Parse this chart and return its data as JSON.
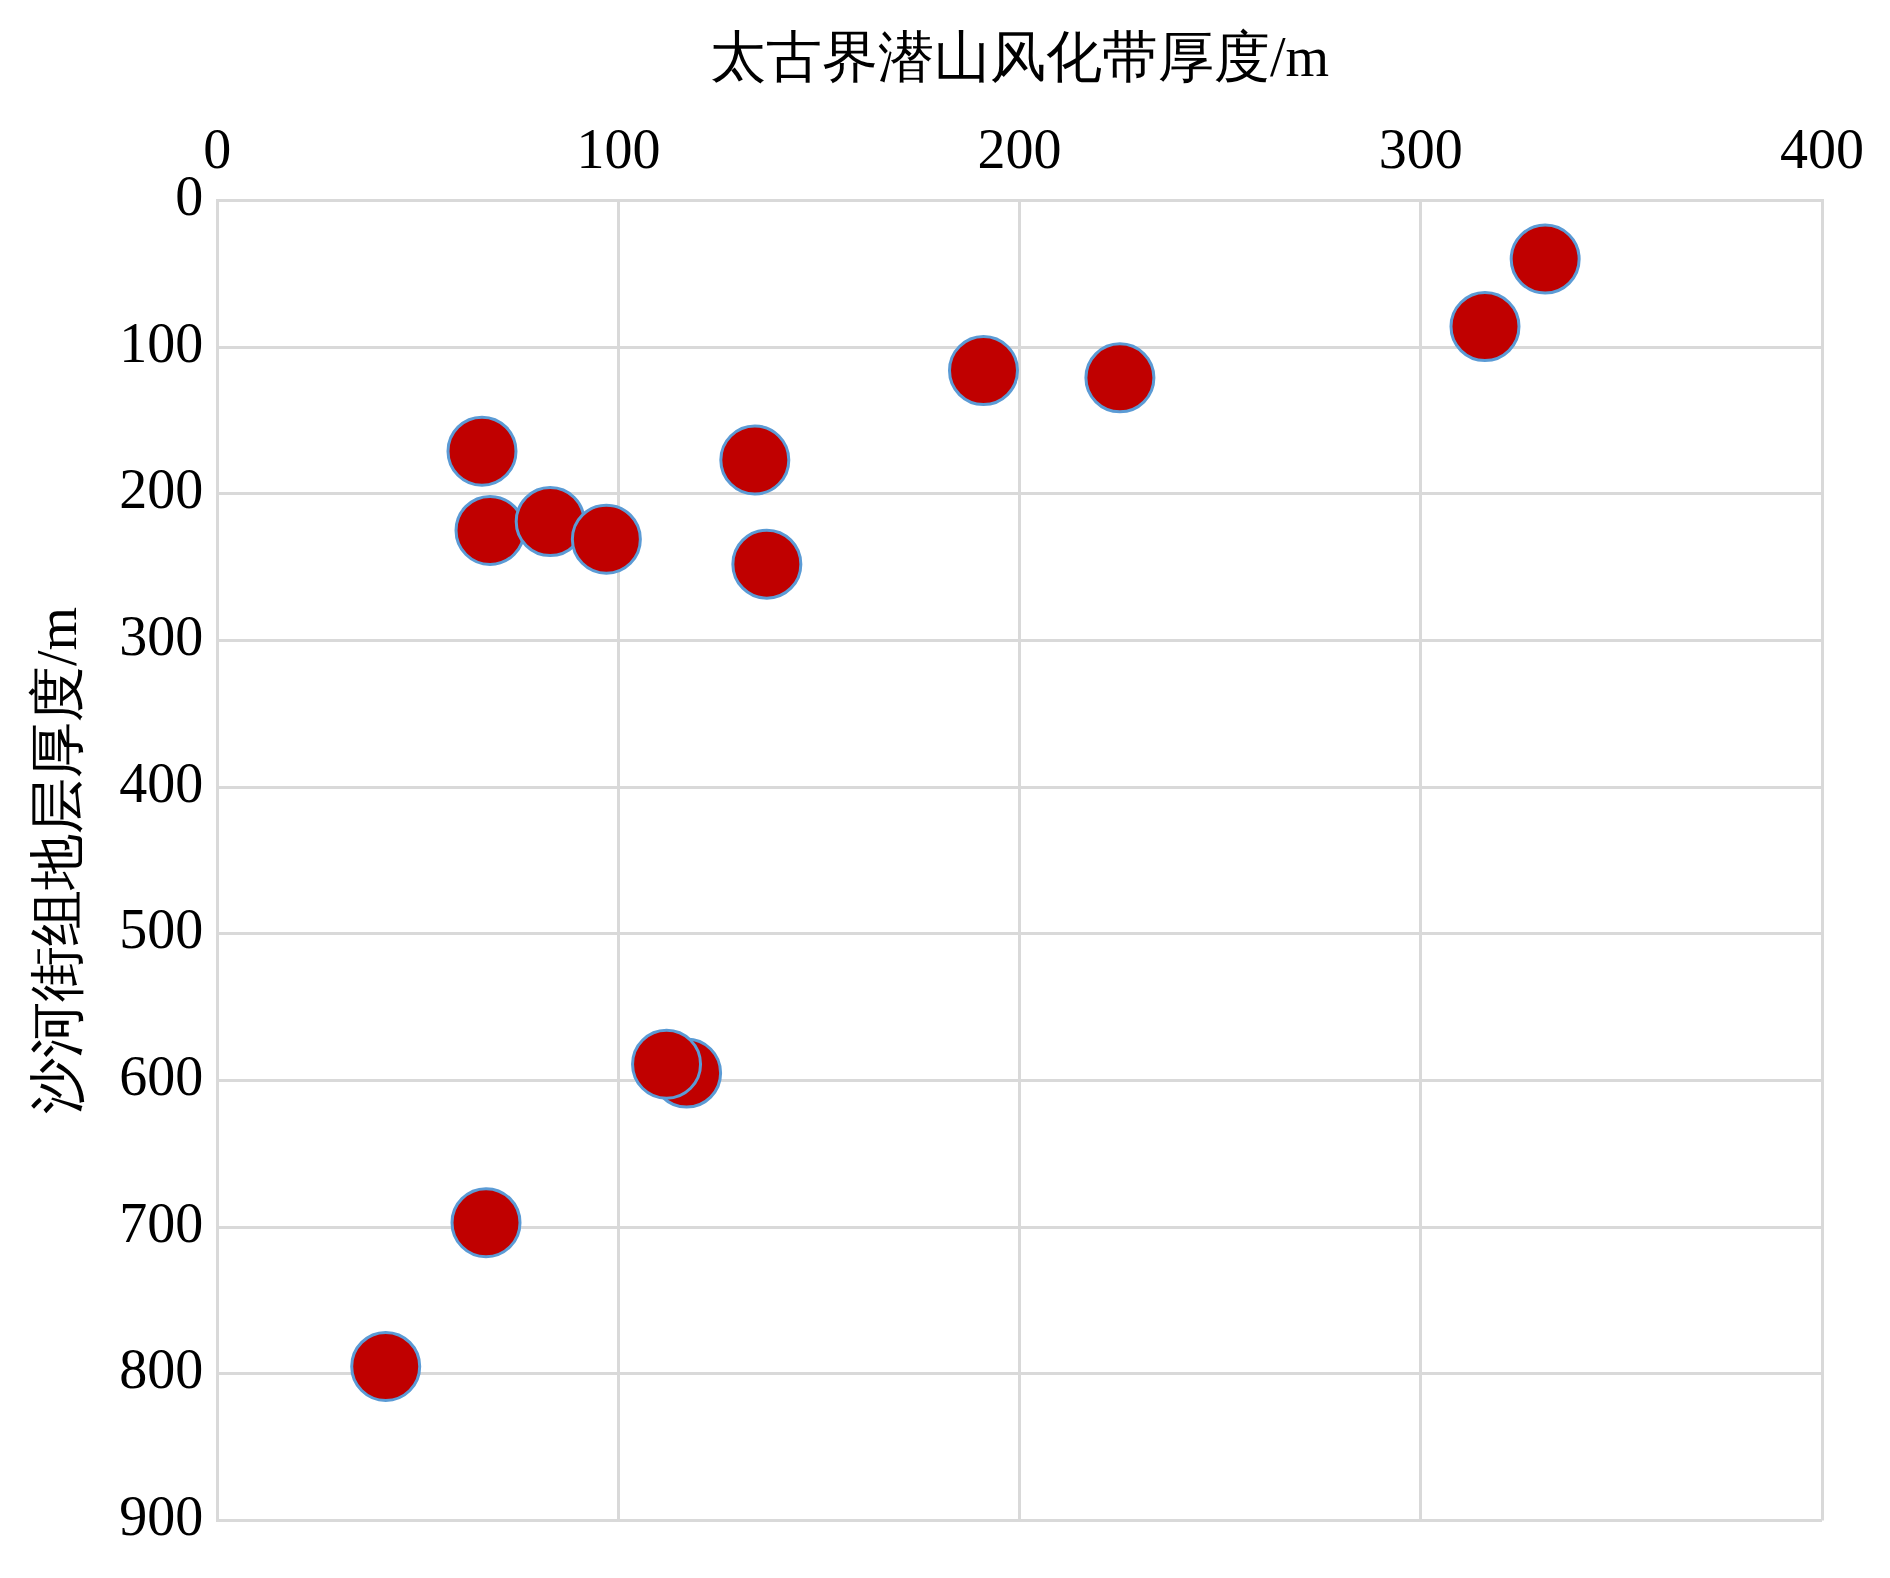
{
  "chart_data": {
    "type": "scatter",
    "xlabel": "太古界潜山风化带厚度/m",
    "ylabel": "沙河街组地层厚度/m",
    "x": [
      331,
      316,
      191,
      225,
      66,
      134,
      68,
      83,
      97,
      137,
      117,
      112,
      67,
      42
    ],
    "values": [
      40,
      86,
      116,
      121,
      171,
      177,
      225,
      219,
      231,
      248,
      595,
      589,
      697,
      795
    ],
    "color": "#c00000",
    "xlim": [
      0,
      400
    ],
    "xticks": [
      0,
      100,
      200,
      300,
      400
    ],
    "ylim": [
      900,
      0
    ],
    "yticks": [
      0,
      100,
      200,
      300,
      400,
      500,
      600,
      700,
      800,
      900
    ],
    "grid": true,
    "marker": "circle",
    "legend": false
  }
}
